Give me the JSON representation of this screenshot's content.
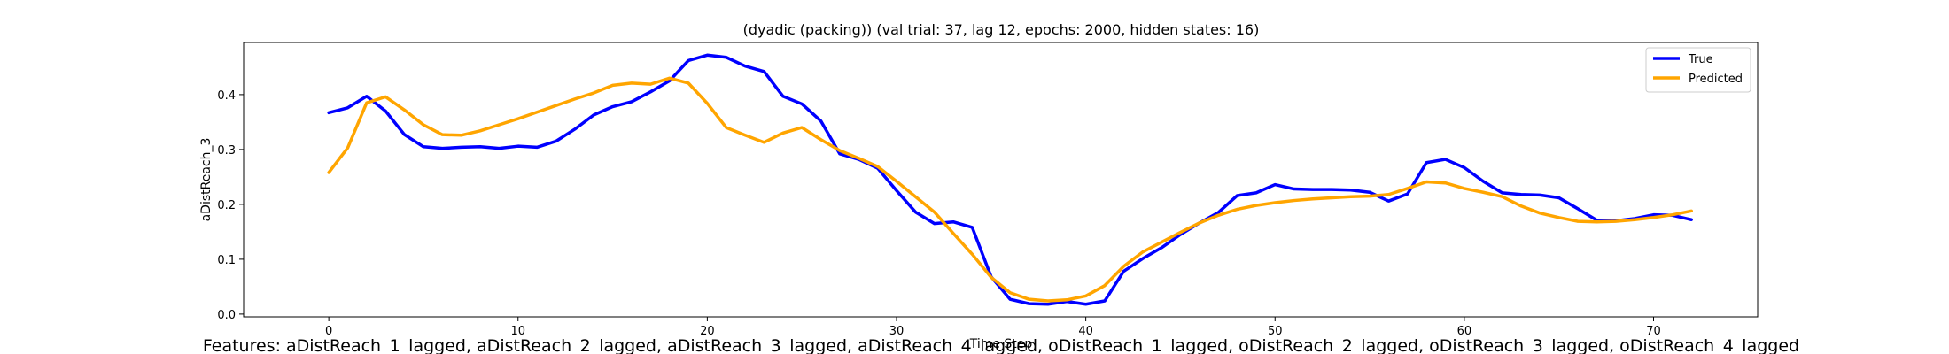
{
  "chart_data": {
    "type": "line",
    "title": "(dyadic (packing)) (val trial: 37, lag 12, epochs: 2000, hidden states: 16)",
    "xlabel": "Time Step",
    "ylabel": "aDistReach_3",
    "xlim": [
      -4.5,
      75.5
    ],
    "ylim": [
      -0.005,
      0.495
    ],
    "xticks": [
      0,
      10,
      20,
      30,
      40,
      50,
      60,
      70
    ],
    "yticks": [
      0.0,
      0.1,
      0.2,
      0.3,
      0.4
    ],
    "xtick_labels": [
      "0",
      "10",
      "20",
      "30",
      "40",
      "50",
      "60",
      "70"
    ],
    "ytick_labels": [
      "0.0",
      "0.1",
      "0.2",
      "0.3",
      "0.4"
    ],
    "grid": false,
    "legend_position": "top-right",
    "series": [
      {
        "name": "True",
        "color": "#0000ff",
        "values": [
          0.367,
          0.376,
          0.397,
          0.37,
          0.327,
          0.305,
          0.302,
          0.304,
          0.305,
          0.302,
          0.306,
          0.304,
          0.315,
          0.337,
          0.363,
          0.378,
          0.387,
          0.405,
          0.425,
          0.462,
          0.472,
          0.468,
          0.452,
          0.442,
          0.397,
          0.383,
          0.352,
          0.292,
          0.282,
          0.266,
          0.225,
          0.186,
          0.165,
          0.168,
          0.158,
          0.068,
          0.027,
          0.019,
          0.018,
          0.023,
          0.018,
          0.024,
          0.078,
          0.101,
          0.121,
          0.145,
          0.166,
          0.185,
          0.216,
          0.221,
          0.236,
          0.228,
          0.227,
          0.227,
          0.226,
          0.222,
          0.206,
          0.219,
          0.276,
          0.282,
          0.267,
          0.242,
          0.221,
          0.218,
          0.217,
          0.212,
          0.192,
          0.171,
          0.17,
          0.174,
          0.181,
          0.18,
          0.172
        ]
      },
      {
        "name": "Predicted",
        "color": "#ffa500",
        "values": [
          0.258,
          0.303,
          0.385,
          0.396,
          0.372,
          0.345,
          0.327,
          0.326,
          0.334,
          0.345,
          0.356,
          0.368,
          0.38,
          0.392,
          0.403,
          0.417,
          0.421,
          0.419,
          0.43,
          0.421,
          0.384,
          0.34,
          0.326,
          0.313,
          0.33,
          0.34,
          0.318,
          0.298,
          0.284,
          0.269,
          0.242,
          0.214,
          0.186,
          0.147,
          0.109,
          0.067,
          0.039,
          0.027,
          0.024,
          0.026,
          0.033,
          0.052,
          0.087,
          0.113,
          0.131,
          0.149,
          0.166,
          0.18,
          0.191,
          0.198,
          0.203,
          0.207,
          0.21,
          0.212,
          0.214,
          0.215,
          0.218,
          0.229,
          0.241,
          0.239,
          0.229,
          0.222,
          0.214,
          0.197,
          0.184,
          0.176,
          0.169,
          0.168,
          0.169,
          0.172,
          0.176,
          0.181,
          0.188
        ]
      }
    ]
  },
  "footer_text": "Features: aDistReach_1_lagged, aDistReach_2_lagged, aDistReach_3_lagged, aDistReach_4_lagged, oDistReach_1_lagged, oDistReach_2_lagged, oDistReach_3_lagged, oDistReach_4_lagged"
}
